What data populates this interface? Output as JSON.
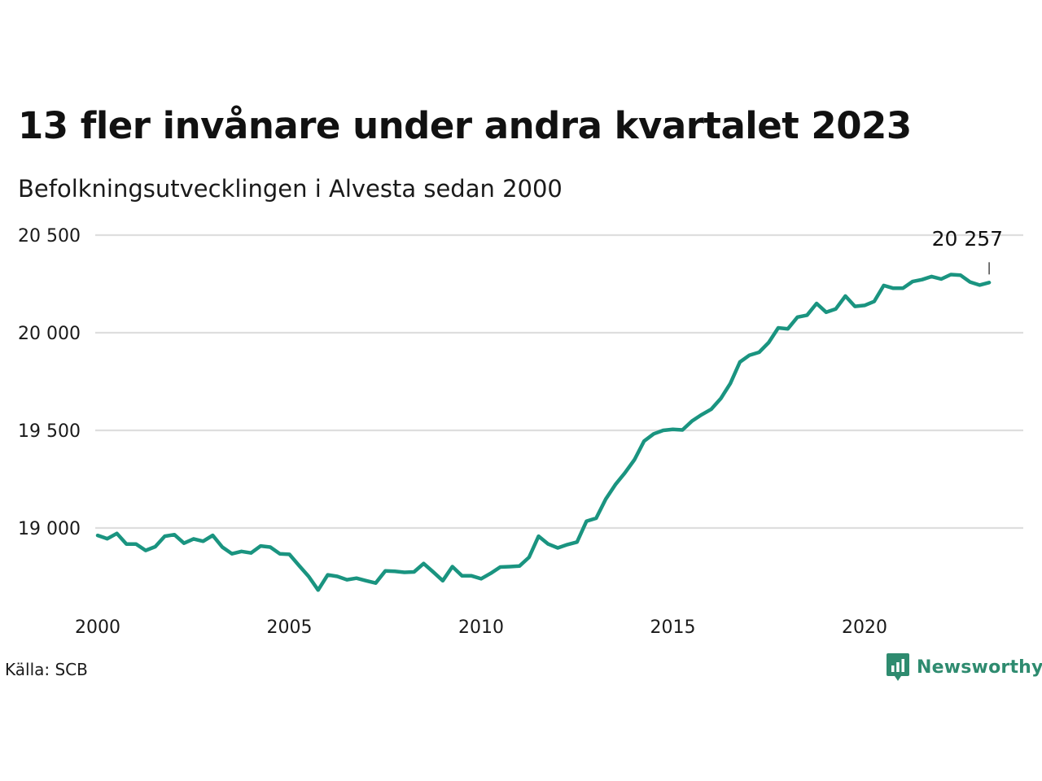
{
  "title": "13 fler invånare under andra kvartalet 2023",
  "subtitle": "Befolkningsutvecklingen i Alvesta sedan 2000",
  "source": "Källa: SCB",
  "brand": {
    "name": "Newsworthy",
    "icon": "newsworthy-logo-icon",
    "color": "#2e8b6f"
  },
  "chart_data": {
    "type": "line",
    "xlim": [
      2000,
      2024
    ],
    "ylim": [
      18630,
      20560
    ],
    "x_ticks": [
      2000,
      2005,
      2010,
      2015,
      2020
    ],
    "x_tick_labels": [
      "2000",
      "2005",
      "2010",
      "2015",
      "2020"
    ],
    "y_ticks": [
      19000,
      19500,
      20000,
      20500
    ],
    "y_tick_labels": [
      "19 000",
      "19 500",
      "20 000",
      "20 500"
    ],
    "grid": true,
    "line_color": "#1a9480",
    "annotation": {
      "x": 2023.25,
      "y": 20257,
      "label": "20 257"
    },
    "series": [
      {
        "x": [
          2000.0,
          2000.25,
          2000.5,
          2000.75,
          2001.0,
          2001.25,
          2001.5,
          2001.75,
          2002.0,
          2002.25,
          2002.5,
          2002.75,
          2003.0,
          2003.25,
          2003.5,
          2003.75,
          2004.0,
          2004.25,
          2004.5,
          2004.75,
          2005.0,
          2005.25,
          2005.5,
          2005.75,
          2006.0,
          2006.25,
          2006.5,
          2006.75,
          2007.0,
          2007.25,
          2007.5,
          2007.75,
          2008.0,
          2008.25,
          2008.5,
          2008.75,
          2009.0,
          2009.25,
          2009.5,
          2009.75,
          2010.0,
          2010.25,
          2010.5,
          2010.75,
          2011.0,
          2011.25,
          2011.5,
          2011.75,
          2012.0,
          2012.25,
          2012.5,
          2012.75,
          2013.0,
          2013.25,
          2013.5,
          2013.75,
          2014.0,
          2014.25,
          2014.5,
          2014.75,
          2015.0,
          2015.25,
          2015.5,
          2015.75,
          2016.0,
          2016.25,
          2016.5,
          2016.75,
          2017.0,
          2017.25,
          2017.5,
          2017.75,
          2018.0,
          2018.25,
          2018.5,
          2018.75,
          2019.0,
          2019.25,
          2019.5,
          2019.75,
          2020.0,
          2020.25,
          2020.5,
          2020.75,
          2021.0,
          2021.25,
          2021.5,
          2021.75,
          2022.0,
          2022.25,
          2022.5,
          2022.75,
          2023.0,
          2023.25
        ],
        "y": [
          18962,
          18945,
          18972,
          18918,
          18918,
          18885,
          18904,
          18958,
          18966,
          18922,
          18944,
          18932,
          18962,
          18902,
          18868,
          18880,
          18872,
          18908,
          18902,
          18868,
          18865,
          18808,
          18752,
          18682,
          18760,
          18752,
          18735,
          18743,
          18730,
          18718,
          18780,
          18778,
          18773,
          18775,
          18818,
          18775,
          18730,
          18802,
          18755,
          18755,
          18740,
          18768,
          18800,
          18802,
          18805,
          18850,
          18958,
          18918,
          18898,
          18915,
          18928,
          19035,
          19050,
          19148,
          19222,
          19282,
          19350,
          19445,
          19482,
          19500,
          19505,
          19502,
          19548,
          19580,
          19608,
          19663,
          19740,
          19850,
          19885,
          19900,
          19950,
          20025,
          20020,
          20080,
          20090,
          20150,
          20105,
          20122,
          20188,
          20135,
          20140,
          20160,
          20242,
          20228,
          20228,
          20262,
          20272,
          20288,
          20275,
          20298,
          20295,
          20260,
          20244,
          20257
        ]
      }
    ]
  }
}
